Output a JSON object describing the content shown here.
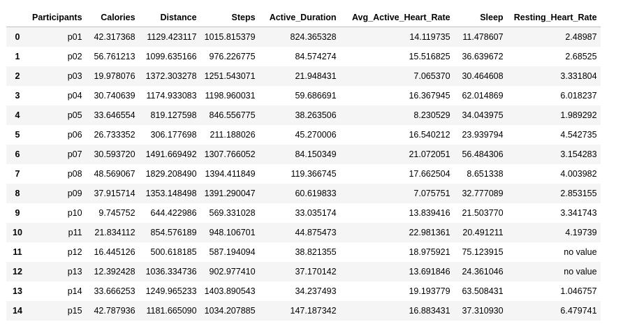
{
  "table": {
    "columns": [
      "",
      "Participants",
      "Calories",
      "Distance",
      "Steps",
      "Active_Duration",
      "Avg_Active_Heart_Rate",
      "Sleep",
      "Resting_Heart_Rate"
    ],
    "rows": [
      [
        "0",
        "p01",
        "42.317368",
        "1129.423117",
        "1015.815379",
        "824.365328",
        "14.119735",
        "11.478607",
        "2.48987"
      ],
      [
        "1",
        "p02",
        "56.761213",
        "1099.635166",
        "976.226775",
        "84.574274",
        "15.516825",
        "36.639672",
        "2.68525"
      ],
      [
        "2",
        "p03",
        "19.978076",
        "1372.303278",
        "1251.543071",
        "21.948431",
        "7.065370",
        "30.464608",
        "3.331804"
      ],
      [
        "3",
        "p04",
        "30.740639",
        "1174.933083",
        "1198.960031",
        "59.686691",
        "16.367945",
        "62.014869",
        "6.018237"
      ],
      [
        "4",
        "p05",
        "33.646554",
        "819.127598",
        "846.556775",
        "38.263506",
        "8.230529",
        "34.043975",
        "1.989292"
      ],
      [
        "5",
        "p06",
        "26.733352",
        "306.177698",
        "211.188026",
        "45.270006",
        "16.540212",
        "23.939794",
        "4.542735"
      ],
      [
        "6",
        "p07",
        "30.593720",
        "1491.669492",
        "1307.766052",
        "84.150349",
        "21.072051",
        "56.484306",
        "3.154283"
      ],
      [
        "7",
        "p08",
        "48.569067",
        "1829.208490",
        "1394.411849",
        "119.366745",
        "17.662504",
        "8.651338",
        "4.003982"
      ],
      [
        "8",
        "p09",
        "37.915714",
        "1353.148498",
        "1391.290047",
        "60.619833",
        "7.075751",
        "32.777089",
        "2.853155"
      ],
      [
        "9",
        "p10",
        "9.745752",
        "644.422986",
        "569.331028",
        "33.035174",
        "13.839416",
        "21.503770",
        "3.341743"
      ],
      [
        "10",
        "p11",
        "21.834112",
        "854.576189",
        "948.106701",
        "44.875473",
        "22.981361",
        "20.491211",
        "4.19739"
      ],
      [
        "11",
        "p12",
        "16.445126",
        "500.618185",
        "587.194094",
        "38.821355",
        "18.975921",
        "75.123915",
        "no value"
      ],
      [
        "12",
        "p13",
        "12.392428",
        "1036.334736",
        "902.977410",
        "37.170142",
        "13.691846",
        "24.361046",
        "no value"
      ],
      [
        "13",
        "p14",
        "33.666253",
        "1249.965233",
        "1403.890543",
        "34.237493",
        "19.193779",
        "63.508431",
        "1.046757"
      ],
      [
        "14",
        "p15",
        "42.787936",
        "1181.665090",
        "1034.207885",
        "147.187342",
        "16.883431",
        "37.310930",
        "6.479741"
      ]
    ]
  }
}
